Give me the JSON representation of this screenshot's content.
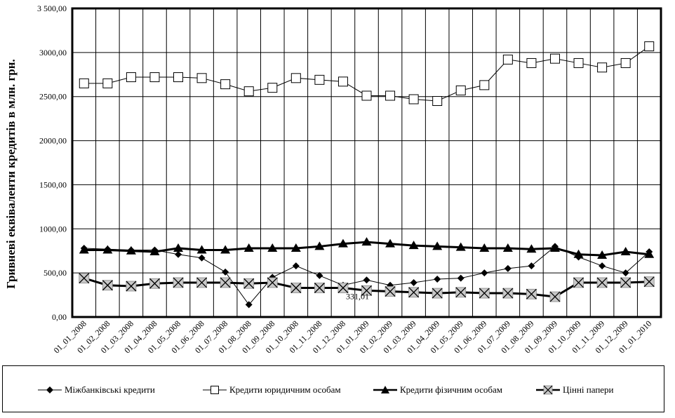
{
  "chart_data": {
    "type": "line",
    "ylabel": "Гривневі еквіваленти кредитів в млн. грн.",
    "xlabel": "",
    "ylim": [
      0,
      3500
    ],
    "yticks": [
      0,
      500,
      1000,
      1500,
      2000,
      2500,
      3000,
      3500
    ],
    "ytick_labels": [
      "0,00",
      "500,00",
      "1000,00",
      "1500,00",
      "2000,00",
      "2500,00",
      "3000,00",
      "3 500,00"
    ],
    "grid": true,
    "legend_position": "bottom",
    "categories": [
      "01_01_2008",
      "01_02_2008",
      "01_03_2008",
      "01_04_2008",
      "01_05_2008",
      "01_06_2008",
      "01_07_2008",
      "01_08_2008",
      "01_09_2008",
      "01_10_2008",
      "01_11_2008",
      "01_12_2008",
      "01_01_2009",
      "01_02_2009",
      "01_03_2009",
      "01_04_2009",
      "01_05_2009",
      "01_06_2009",
      "01_07_2009",
      "01_08_2009",
      "01_09_2009",
      "01_10_2009",
      "01_11_2009",
      "01_12_2009",
      "01_01_2010"
    ],
    "series": [
      {
        "name": "Міжбанківські кредити",
        "marker": "diamond",
        "color": "#000000",
        "values": [
          780,
          770,
          760,
          760,
          710,
          670,
          510,
          140,
          450,
          580,
          470,
          360,
          420,
          360,
          390,
          430,
          440,
          500,
          550,
          580,
          800,
          680,
          580,
          500,
          740
        ]
      },
      {
        "name": "Кредити юридичним особам",
        "marker": "square-open",
        "color": "#000000",
        "values": [
          2650,
          2650,
          2720,
          2720,
          2720,
          2710,
          2640,
          2560,
          2600,
          2710,
          2690,
          2670,
          2510,
          2510,
          2470,
          2450,
          2570,
          2630,
          2920,
          2880,
          2930,
          2880,
          2830,
          2880,
          3070
        ]
      },
      {
        "name": "Кредити фізичним особам",
        "marker": "triangle",
        "color": "#000000",
        "values": [
          760,
          760,
          750,
          740,
          780,
          760,
          760,
          780,
          780,
          780,
          800,
          830,
          850,
          830,
          810,
          800,
          790,
          780,
          780,
          770,
          780,
          710,
          700,
          740,
          710
        ]
      },
      {
        "name": "Цінні папери",
        "marker": "x-box",
        "color": "#000000",
        "values": [
          440,
          360,
          350,
          380,
          390,
          390,
          390,
          380,
          390,
          330,
          330,
          330,
          300,
          290,
          280,
          270,
          280,
          270,
          270,
          260,
          230,
          390,
          390,
          390,
          400
        ]
      }
    ],
    "annotations": [
      {
        "text": "331,01",
        "category": "01_12_2008",
        "series": "Цінні папери"
      }
    ]
  }
}
